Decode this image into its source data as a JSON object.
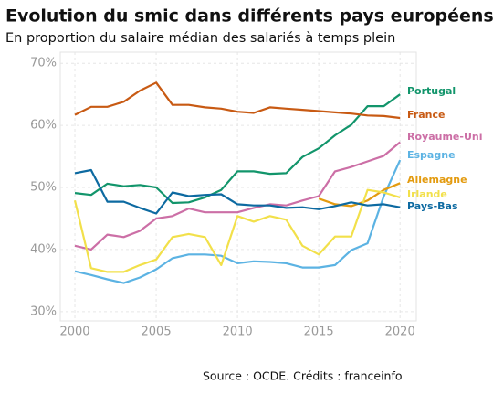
{
  "chart_data": {
    "type": "line",
    "title": "Evolution du smic dans différents pays européens",
    "subtitle": "En proportion du salaire médian des salariés à temps plein",
    "source": "Source : OCDE. Crédits : franceinfo",
    "x": [
      2000,
      2001,
      2002,
      2003,
      2004,
      2005,
      2006,
      2007,
      2008,
      2009,
      2010,
      2011,
      2012,
      2013,
      2014,
      2015,
      2016,
      2017,
      2018,
      2019,
      2020
    ],
    "xlim": [
      1999.1,
      2021.0
    ],
    "xticks": [
      2000,
      2005,
      2010,
      2015,
      2020
    ],
    "ylim": [
      28.5,
      71.8
    ],
    "yticks": [
      {
        "value": 30,
        "label": "30%"
      },
      {
        "value": 40,
        "label": "40%"
      },
      {
        "value": 50,
        "label": "50%"
      },
      {
        "value": 60,
        "label": "60%"
      },
      {
        "value": 70,
        "label": "70%"
      }
    ],
    "grid": true,
    "series": [
      {
        "name": "Portugal",
        "color": "#12956b",
        "values": [
          49.1,
          48.8,
          50.6,
          50.2,
          50.4,
          50.0,
          47.5,
          47.6,
          48.4,
          49.6,
          52.6,
          52.6,
          52.2,
          52.3,
          54.9,
          56.3,
          58.4,
          60.1,
          63.1,
          63.1,
          65.0
        ]
      },
      {
        "name": "France",
        "color": "#c85a13",
        "values": [
          61.7,
          63.0,
          63.0,
          63.8,
          65.6,
          66.9,
          63.3,
          63.3,
          62.9,
          62.7,
          62.2,
          62.0,
          62.9,
          62.7,
          62.5,
          62.3,
          62.1,
          61.9,
          61.6,
          61.5,
          61.2
        ]
      },
      {
        "name": "Royaume-Uni",
        "color": "#cc6fa6",
        "values": [
          40.6,
          40.0,
          42.4,
          42.0,
          43.0,
          45.0,
          45.4,
          46.6,
          46.0,
          46.0,
          46.0,
          46.7,
          47.3,
          47.1,
          47.9,
          48.6,
          52.6,
          53.3,
          54.2,
          55.1,
          57.3
        ]
      },
      {
        "name": "Espagne",
        "color": "#5cb3e3",
        "values": [
          36.5,
          35.9,
          35.2,
          34.6,
          35.5,
          36.8,
          38.6,
          39.2,
          39.2,
          39.0,
          37.8,
          38.1,
          38.0,
          37.8,
          37.1,
          37.1,
          37.5,
          39.9,
          41.0,
          48.6,
          54.4
        ]
      },
      {
        "name": "Allemagne",
        "color": "#e39b10",
        "values": [
          null,
          null,
          null,
          null,
          null,
          null,
          null,
          null,
          null,
          null,
          null,
          null,
          null,
          null,
          null,
          48.2,
          47.3,
          47.0,
          47.9,
          49.6,
          50.7
        ]
      },
      {
        "name": "Irlande",
        "color": "#f2e04a",
        "values": [
          47.9,
          37.0,
          36.4,
          36.4,
          37.5,
          38.4,
          42.0,
          42.5,
          42.0,
          37.5,
          45.4,
          44.5,
          45.4,
          44.8,
          40.6,
          39.2,
          42.1,
          42.1,
          49.6,
          49.2,
          48.4
        ]
      },
      {
        "name": "Pays-Bas",
        "color": "#0d6aa1",
        "values": [
          52.3,
          52.8,
          47.7,
          47.7,
          46.7,
          45.8,
          49.2,
          48.6,
          48.8,
          48.9,
          47.3,
          47.1,
          47.1,
          46.7,
          46.8,
          46.5,
          47.0,
          47.6,
          47.1,
          47.3,
          46.8
        ]
      }
    ]
  }
}
